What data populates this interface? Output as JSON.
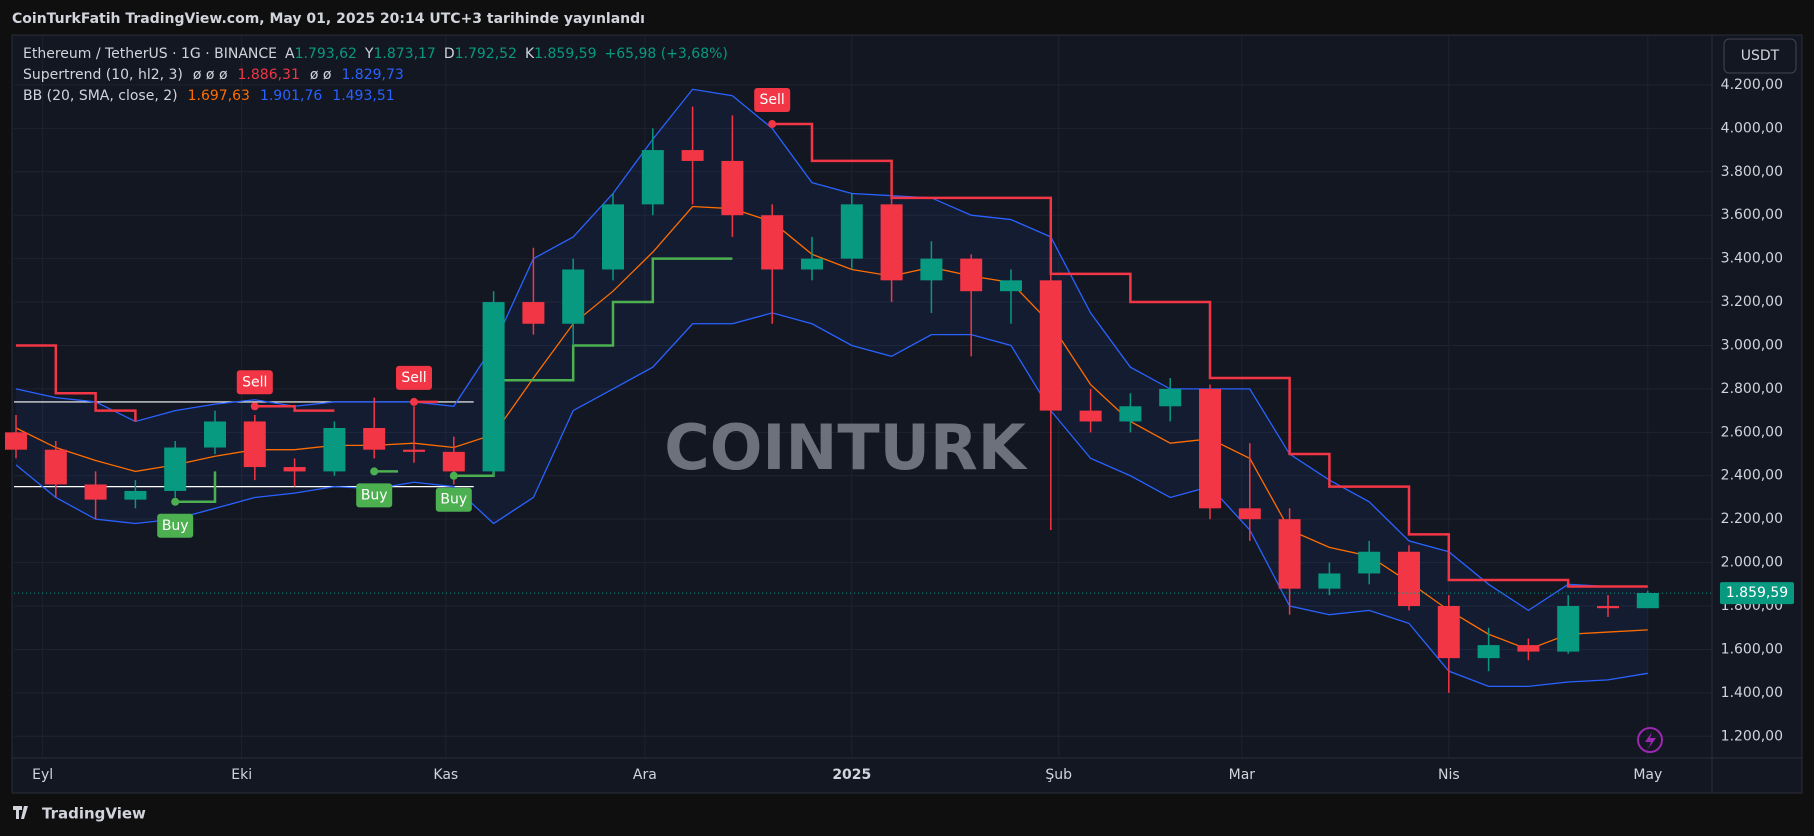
{
  "banner": "CoinTurkFatih TradingView.com, May 01, 2025 20:14 UTC+3 tarihinde yayınlandı",
  "legend": {
    "symbol": "Ethereum / TetherUS · 1G · BINANCE",
    "open_label": "A",
    "open": "1.793,62",
    "high_label": "Y",
    "high": "1.873,17",
    "low_label": "D",
    "low": "1.792,52",
    "close_label": "K",
    "close": "1.859,59",
    "change": "+65,98 (+3,68%)",
    "supertrend": {
      "name": "Supertrend (10, hl2, 3)",
      "placeholders": "ø ø ø",
      "value": "1.886,31",
      "placeholders2": "ø ø",
      "value2": "1.829,73"
    },
    "bb": {
      "name": "BB (20, SMA, close, 2)",
      "basis": "1.697,63",
      "upper": "1.901,76",
      "lower": "1.493,51"
    }
  },
  "currency_button": "USDT",
  "watermark": "COINTURK",
  "footer": "TradingView",
  "chart_data": {
    "type": "candlestick",
    "categories": [
      null,
      null,
      null,
      null,
      null,
      null,
      null,
      null,
      null,
      null,
      null,
      null,
      null,
      null,
      null,
      null,
      null,
      null,
      null,
      null,
      null,
      null,
      null,
      null,
      null,
      null,
      null,
      null,
      null,
      null,
      null,
      null,
      null,
      null,
      null,
      null,
      null,
      null,
      null,
      null,
      null,
      null
    ],
    "open": [
      2600,
      2520,
      2360,
      2290,
      2330,
      2530,
      2650,
      2440,
      2420,
      2620,
      2520,
      2510,
      2420,
      3200,
      3100,
      3350,
      3650,
      3900,
      3850,
      3600,
      3350,
      3400,
      3650,
      3300,
      3400,
      3250,
      3300,
      2700,
      2650,
      2720,
      2800,
      2250,
      2200,
      1880,
      1950,
      2050,
      1800,
      1560,
      1620,
      1590,
      1800,
      1790
    ],
    "high": [
      2680,
      2560,
      2420,
      2380,
      2560,
      2700,
      2680,
      2480,
      2650,
      2760,
      2720,
      2580,
      3250,
      3450,
      3400,
      3700,
      4000,
      4100,
      4060,
      3650,
      3500,
      3700,
      3700,
      3480,
      3420,
      3350,
      3330,
      2800,
      2780,
      2850,
      2820,
      2550,
      2250,
      2000,
      2100,
      2080,
      1850,
      1700,
      1650,
      1850,
      1850,
      1870
    ],
    "low": [
      2480,
      2300,
      2200,
      2250,
      2300,
      2500,
      2380,
      2350,
      2400,
      2480,
      2460,
      2360,
      2400,
      3050,
      3000,
      3300,
      3600,
      3650,
      3500,
      3100,
      3300,
      3350,
      3200,
      3150,
      2950,
      3100,
      2150,
      2600,
      2600,
      2650,
      2200,
      2100,
      1760,
      1850,
      1900,
      1780,
      1400,
      1500,
      1550,
      1580,
      1750,
      1790
    ],
    "close": [
      2520,
      2360,
      2290,
      2330,
      2530,
      2650,
      2440,
      2420,
      2620,
      2520,
      2510,
      2420,
      3200,
      3100,
      3350,
      3650,
      3900,
      3850,
      3600,
      3350,
      3400,
      3650,
      3300,
      3400,
      3250,
      3300,
      2700,
      2650,
      2720,
      2800,
      2250,
      2200,
      1880,
      1950,
      2050,
      1800,
      1560,
      1620,
      1590,
      1800,
      1790,
      1860
    ],
    "up_color": "#089981",
    "down_color": "#f23645",
    "series": [
      {
        "color": "#2962ff",
        "band": "upper",
        "values": [
          2800,
          2760,
          2740,
          2650,
          2700,
          2730,
          2750,
          2720,
          2740,
          2740,
          2740,
          2720,
          3000,
          3400,
          3500,
          3700,
          3950,
          4180,
          4150,
          4000,
          3750,
          3700,
          3690,
          3680,
          3600,
          3580,
          3500,
          3150,
          2900,
          2800,
          2800,
          2800,
          2500,
          2380,
          2280,
          2100,
          2050,
          1900,
          1780,
          1900,
          1890,
          1890
        ]
      },
      {
        "color": "#2962ff",
        "band": "lower",
        "values": [
          2450,
          2300,
          2200,
          2180,
          2200,
          2250,
          2300,
          2320,
          2350,
          2340,
          2370,
          2350,
          2180,
          2300,
          2700,
          2800,
          2900,
          3100,
          3100,
          3150,
          3100,
          3000,
          2950,
          3050,
          3050,
          3000,
          2700,
          2480,
          2400,
          2300,
          2350,
          2150,
          1800,
          1760,
          1780,
          1720,
          1500,
          1430,
          1430,
          1450,
          1460,
          1490
        ]
      },
      {
        "color": "#ff6d00",
        "values": [
          2620,
          2530,
          2470,
          2420,
          2450,
          2490,
          2520,
          2520,
          2540,
          2540,
          2550,
          2530,
          2590,
          2850,
          3100,
          3250,
          3430,
          3640,
          3630,
          3570,
          3420,
          3350,
          3320,
          3360,
          3320,
          3290,
          3100,
          2820,
          2650,
          2550,
          2570,
          2480,
          2150,
          2070,
          2030,
          1910,
          1780,
          1670,
          1600,
          1670,
          1680,
          1690
        ]
      },
      {
        "color": "#4caf50",
        "step": true,
        "values": [
          null,
          null,
          null,
          null,
          2280,
          2420,
          null,
          null,
          null,
          2420,
          null,
          2400,
          2840,
          2840,
          3000,
          3200,
          3400,
          3400,
          3400,
          null,
          null,
          null,
          null,
          null,
          null,
          null,
          null,
          null,
          null,
          null,
          null,
          null,
          null,
          null,
          null,
          null,
          null,
          null,
          null,
          null,
          null,
          null
        ]
      },
      {
        "color": "#f23645",
        "step": true,
        "values": [
          3000,
          2780,
          2700,
          2650,
          null,
          null,
          2720,
          2700,
          2700,
          null,
          2740,
          null,
          null,
          null,
          null,
          null,
          null,
          null,
          null,
          4020,
          3850,
          3850,
          3680,
          3680,
          3680,
          3680,
          3330,
          3330,
          3200,
          3200,
          2850,
          2850,
          2500,
          2350,
          2350,
          2130,
          1920,
          1920,
          1920,
          1890,
          1890,
          1890
        ]
      }
    ],
    "signals": [
      {
        "label": "Buy",
        "index": 4,
        "value": 2280
      },
      {
        "label": "Sell",
        "index": 6,
        "value": 2720
      },
      {
        "label": "Buy",
        "index": 9,
        "value": 2420
      },
      {
        "label": "Sell",
        "index": 10,
        "value": 2740
      },
      {
        "label": "Buy",
        "index": 11,
        "value": 2400
      },
      {
        "label": "Sell",
        "index": 19,
        "value": 4020
      }
    ],
    "hlines": [
      {
        "value": 2740,
        "end": 11.5
      },
      {
        "value": 2350,
        "end": 11.5
      }
    ],
    "last_price": 1859.59,
    "last_price_label": "1.859,59",
    "ylim": [
      1100,
      4430
    ],
    "yticks": [
      {
        "value": 1200,
        "label": "1.200,00"
      },
      {
        "value": 1400,
        "label": "1.400,00"
      },
      {
        "value": 1600,
        "label": "1.600,00"
      },
      {
        "value": 1800,
        "label": "1.800,00"
      },
      {
        "value": 2000,
        "label": "2.000,00"
      },
      {
        "value": 2200,
        "label": "2.200,00"
      },
      {
        "value": 2400,
        "label": "2.400,00"
      },
      {
        "value": 2600,
        "label": "2.600,00"
      },
      {
        "value": 2800,
        "label": "2.800,00"
      },
      {
        "value": 3000,
        "label": "3.000,00"
      },
      {
        "value": 3200,
        "label": "3.200,00"
      },
      {
        "value": 3400,
        "label": "3.400,00"
      },
      {
        "value": 3600,
        "label": "3.600,00"
      },
      {
        "value": 3800,
        "label": "3.800,00"
      },
      {
        "value": 4000,
        "label": "4.000,00"
      },
      {
        "value": 4200,
        "label": "4.200,00"
      }
    ],
    "xticks": [
      {
        "value": 0.67,
        "label": "Eyl"
      },
      {
        "value": 5.67,
        "label": "Eki"
      },
      {
        "value": 10.8,
        "label": "Kas"
      },
      {
        "value": 15.8,
        "label": "Ara"
      },
      {
        "value": 21,
        "label": "2025"
      },
      {
        "value": 26.2,
        "label": "Şub"
      },
      {
        "value": 30.8,
        "label": "Mar"
      },
      {
        "value": 36,
        "label": "Nis"
      },
      {
        "value": 41,
        "label": "May"
      }
    ],
    "grid": true
  }
}
